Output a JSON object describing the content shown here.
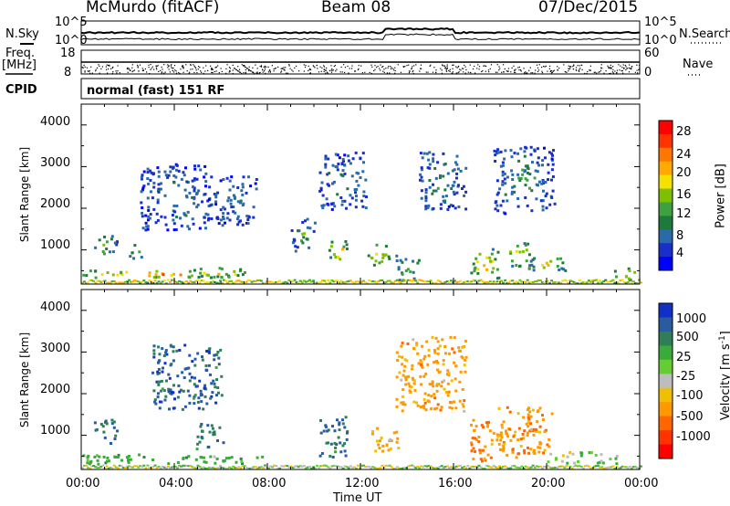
{
  "header": {
    "station": "McMurdo (fitACF)",
    "beam": "Beam 08",
    "date": "07/Dec/2015"
  },
  "top_panels": {
    "nsky_label": "N.Sky",
    "nsearch_label": "N.Search",
    "freq_label": "Freq.",
    "freq_unit": "[MHz]",
    "nave_label": "Nave",
    "cpid_label": "CPID",
    "cpid_value": "normal (fast) 151 RF",
    "noise_ticks_left": [
      "10^5",
      "10^0"
    ],
    "noise_ticks_right": [
      "10^5",
      "10^0"
    ],
    "freq_ticks": [
      "18",
      "8"
    ],
    "nave_ticks": [
      "60",
      "0"
    ]
  },
  "power_panel": {
    "colorbar_label": "Power [dB]",
    "colorbar_ticks": [
      "28",
      "24",
      "20",
      "16",
      "12",
      "8",
      "4"
    ],
    "colorbar_colors": [
      "#ff0000",
      "#ff3300",
      "#ff7700",
      "#ffaa00",
      "#f5e000",
      "#7cc000",
      "#3fa040",
      "#1e7a3c",
      "#2a6aa8",
      "#1a2ec8",
      "#0000ff"
    ]
  },
  "velocity_panel": {
    "colorbar_label": "Velocity [m s",
    "colorbar_label_sup": "-1",
    "colorbar_label_end": "]",
    "colorbar_ticks": [
      "1000",
      "500",
      "25",
      "-25",
      "-100",
      "-500",
      "-1000"
    ],
    "colorbar_colors": [
      "#1030c8",
      "#2a5aa0",
      "#2e7e58",
      "#3aaa3a",
      "#66cc33",
      "#bdbdbd",
      "#f0c000",
      "#ff9900",
      "#ff6600",
      "#ff3300",
      "#ff0000"
    ]
  },
  "x_axis": {
    "title": "Time UT",
    "ticks": [
      "00:00",
      "04:00",
      "08:00",
      "12:00",
      "16:00",
      "20:00",
      "00:00"
    ]
  },
  "y_axis": {
    "title": "Slant Range [km]",
    "ticks": [
      "1000",
      "2000",
      "3000",
      "4000"
    ]
  },
  "chart_data": [
    {
      "type": "heatmap",
      "title": "Power [dB]",
      "xlabel": "Time UT",
      "ylabel": "Slant Range [km]",
      "xlim": [
        "00:00",
        "24:00"
      ],
      "ylim": [
        180,
        4500
      ],
      "zlim": [
        0,
        30
      ],
      "blobs": [
        {
          "t": 3.5,
          "r": 450,
          "dt": 3.5,
          "dr": 90,
          "v": 26
        },
        {
          "t": 6.0,
          "r": 480,
          "dt": 1.2,
          "dr": 120,
          "v": 24
        },
        {
          "t": 1.0,
          "r": 1150,
          "dt": 0.5,
          "dr": 250,
          "v": 16
        },
        {
          "t": 2.3,
          "r": 1000,
          "dt": 0.3,
          "dr": 180,
          "v": 18
        },
        {
          "t": 11.0,
          "r": 1000,
          "dt": 0.4,
          "dr": 260,
          "v": 24
        },
        {
          "t": 12.8,
          "r": 900,
          "dt": 0.5,
          "dr": 260,
          "v": 22
        },
        {
          "t": 9.5,
          "r": 1400,
          "dt": 0.5,
          "dr": 400,
          "v": 12
        },
        {
          "t": 14.0,
          "r": 600,
          "dt": 0.5,
          "dr": 300,
          "v": 14
        },
        {
          "t": 17.3,
          "r": 700,
          "dt": 0.6,
          "dr": 350,
          "v": 24
        },
        {
          "t": 18.8,
          "r": 900,
          "dt": 0.5,
          "dr": 300,
          "v": 22
        },
        {
          "t": 20.0,
          "r": 700,
          "dt": 0.8,
          "dr": 200,
          "v": 20
        },
        {
          "t": 23.3,
          "r": 450,
          "dt": 0.5,
          "dr": 150,
          "v": 24
        },
        {
          "t": 4.0,
          "r": 2300,
          "dt": 1.5,
          "dr": 800,
          "v": 8
        },
        {
          "t": 6.5,
          "r": 2200,
          "dt": 1.0,
          "dr": 600,
          "v": 8
        },
        {
          "t": 11.2,
          "r": 2700,
          "dt": 1.0,
          "dr": 700,
          "v": 8
        },
        {
          "t": 15.5,
          "r": 2700,
          "dt": 1.0,
          "dr": 700,
          "v": 10
        },
        {
          "t": 19.0,
          "r": 2700,
          "dt": 1.3,
          "dr": 800,
          "v": 10
        }
      ]
    },
    {
      "type": "heatmap",
      "title": "Velocity [m s-1]",
      "xlabel": "Time UT",
      "ylabel": "Slant Range [km]",
      "xlim": [
        "00:00",
        "24:00"
      ],
      "ylim": [
        180,
        4500
      ],
      "zlim": [
        -1000,
        1000
      ],
      "blobs": [
        {
          "t": 4.0,
          "r": 450,
          "dt": 4.0,
          "dr": 120,
          "v": 60
        },
        {
          "t": 1.0,
          "r": 1100,
          "dt": 0.5,
          "dr": 300,
          "v": 400
        },
        {
          "t": 5.5,
          "r": 1000,
          "dt": 0.6,
          "dr": 300,
          "v": 300
        },
        {
          "t": 10.8,
          "r": 1000,
          "dt": 0.6,
          "dr": 500,
          "v": 400
        },
        {
          "t": 13.0,
          "r": 900,
          "dt": 0.6,
          "dr": 300,
          "v": -120
        },
        {
          "t": 17.5,
          "r": 900,
          "dt": 0.8,
          "dr": 500,
          "v": -150
        },
        {
          "t": 19.0,
          "r": 1100,
          "dt": 1.2,
          "dr": 600,
          "v": -150
        },
        {
          "t": 15.0,
          "r": 2500,
          "dt": 1.5,
          "dr": 900,
          "v": -120
        },
        {
          "t": 4.5,
          "r": 2400,
          "dt": 1.5,
          "dr": 800,
          "v": 500
        },
        {
          "t": 21.5,
          "r": 500,
          "dt": 1.5,
          "dr": 150,
          "v": 10
        }
      ]
    }
  ]
}
